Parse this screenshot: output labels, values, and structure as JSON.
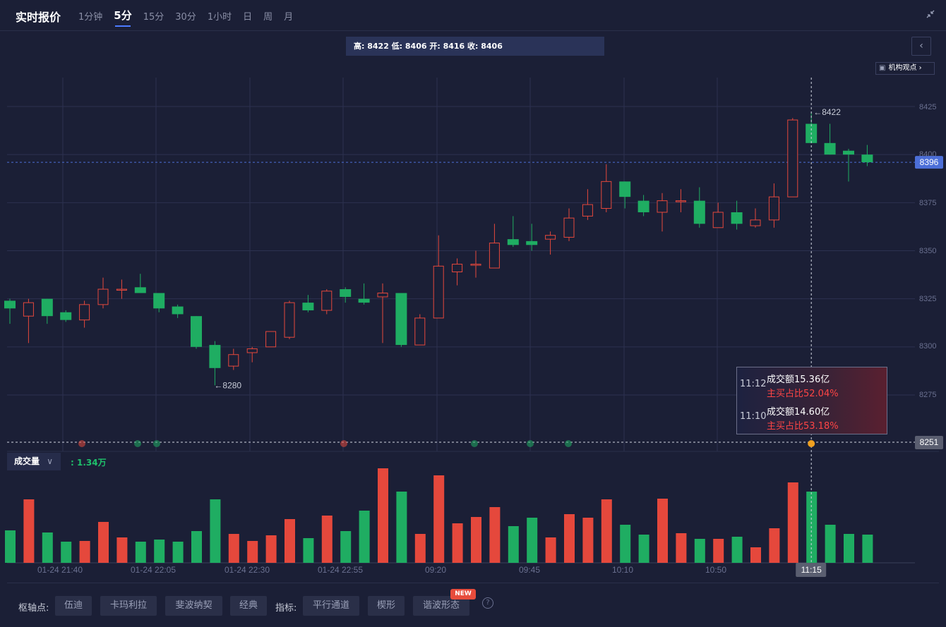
{
  "header": {
    "title": "实时报价",
    "tabs": [
      "1分钟",
      "5分",
      "15分",
      "30分",
      "1小时",
      "日",
      "周",
      "月"
    ],
    "active_tab": "5分"
  },
  "ohlc_label": "高: 8422 低: 8406 开: 8416 收: 8406",
  "institution_button": "机构观点",
  "price_axis": {
    "ticks": [
      "8425",
      "8400",
      "8375",
      "8350",
      "8325",
      "8300",
      "8275"
    ],
    "current_price": "8396",
    "crosshair_price": "8251"
  },
  "annotations": {
    "high_label": "8422",
    "low_label": "8280"
  },
  "volume": {
    "selector_label": "成交量",
    "value": ": 1.34万"
  },
  "time_axis": {
    "labels": [
      "01-24 21:40",
      "01-24 22:05",
      "01-24 22:30",
      "01-24 22:55",
      "09:20",
      "09:45",
      "10:10",
      "10:50"
    ],
    "crosshair_time": "11:15"
  },
  "tooltip": [
    {
      "time": "11:12",
      "amount": "成交额15.36亿",
      "ratio": "主买占比52.04%"
    },
    {
      "time": "11:10",
      "amount": "成交额14.60亿",
      "ratio": "主买占比53.18%"
    }
  ],
  "bottom_bar": {
    "pivot_label": "枢轴点:",
    "pivot_buttons": [
      "伍迪",
      "卡玛利拉",
      "斐波纳契",
      "经典"
    ],
    "indicator_label": "指标:",
    "indicator_buttons": [
      "平行通道",
      "楔形",
      "谐波形态"
    ],
    "new_badge": "NEW"
  },
  "colors": {
    "up": "#e5483c",
    "down": "#1fad62",
    "background": "#1b1f36",
    "accent": "#4c6fd8"
  },
  "chart_data": {
    "type": "candlestick",
    "candles": [
      {
        "o": 8324,
        "h": 8325,
        "l": 8312,
        "c": 8320
      },
      {
        "o": 8316,
        "h": 8325,
        "l": 8302,
        "c": 8323
      },
      {
        "o": 8325,
        "h": 8325,
        "l": 8312,
        "c": 8316
      },
      {
        "o": 8318,
        "h": 8319,
        "l": 8313,
        "c": 8314
      },
      {
        "o": 8314,
        "h": 8324,
        "l": 8310,
        "c": 8322
      },
      {
        "o": 8322,
        "h": 8336,
        "l": 8320,
        "c": 8330
      },
      {
        "o": 8330,
        "h": 8335,
        "l": 8325,
        "c": 8330
      },
      {
        "o": 8331,
        "h": 8338,
        "l": 8328,
        "c": 8328
      },
      {
        "o": 8328,
        "h": 8328,
        "l": 8318,
        "c": 8320
      },
      {
        "o": 8321,
        "h": 8322,
        "l": 8315,
        "c": 8317
      },
      {
        "o": 8316,
        "h": 8316,
        "l": 8299,
        "c": 8300
      },
      {
        "o": 8301,
        "h": 8303,
        "l": 8280,
        "c": 8289
      },
      {
        "o": 8290,
        "h": 8299,
        "l": 8288,
        "c": 8296
      },
      {
        "o": 8297,
        "h": 8300,
        "l": 8292,
        "c": 8299
      },
      {
        "o": 8300,
        "h": 8308,
        "l": 8300,
        "c": 8308
      },
      {
        "o": 8305,
        "h": 8324,
        "l": 8304,
        "c": 8323
      },
      {
        "o": 8323,
        "h": 8327,
        "l": 8318,
        "c": 8319
      },
      {
        "o": 8319,
        "h": 8330,
        "l": 8317,
        "c": 8329
      },
      {
        "o": 8330,
        "h": 8331,
        "l": 8323,
        "c": 8326
      },
      {
        "o": 8325,
        "h": 8333,
        "l": 8322,
        "c": 8323
      },
      {
        "o": 8326,
        "h": 8333,
        "l": 8302,
        "c": 8328
      },
      {
        "o": 8328,
        "h": 8328,
        "l": 8300,
        "c": 8301
      },
      {
        "o": 8301,
        "h": 8317,
        "l": 8301,
        "c": 8315
      },
      {
        "o": 8315,
        "h": 8358,
        "l": 8315,
        "c": 8342
      },
      {
        "o": 8339,
        "h": 8346,
        "l": 8332,
        "c": 8343
      },
      {
        "o": 8343,
        "h": 8350,
        "l": 8336,
        "c": 8343
      },
      {
        "o": 8341,
        "h": 8364,
        "l": 8341,
        "c": 8354
      },
      {
        "o": 8356,
        "h": 8368,
        "l": 8352,
        "c": 8353
      },
      {
        "o": 8355,
        "h": 8364,
        "l": 8350,
        "c": 8353
      },
      {
        "o": 8356,
        "h": 8360,
        "l": 8348,
        "c": 8358
      },
      {
        "o": 8357,
        "h": 8372,
        "l": 8355,
        "c": 8367
      },
      {
        "o": 8368,
        "h": 8382,
        "l": 8366,
        "c": 8374
      },
      {
        "o": 8372,
        "h": 8395,
        "l": 8370,
        "c": 8386
      },
      {
        "o": 8386,
        "h": 8386,
        "l": 8372,
        "c": 8378
      },
      {
        "o": 8376,
        "h": 8379,
        "l": 8368,
        "c": 8370
      },
      {
        "o": 8370,
        "h": 8380,
        "l": 8360,
        "c": 8376
      },
      {
        "o": 8376,
        "h": 8382,
        "l": 8370,
        "c": 8376
      },
      {
        "o": 8376,
        "h": 8383,
        "l": 8362,
        "c": 8364
      },
      {
        "o": 8362,
        "h": 8375,
        "l": 8362,
        "c": 8370
      },
      {
        "o": 8370,
        "h": 8376,
        "l": 8361,
        "c": 8364
      },
      {
        "o": 8363,
        "h": 8372,
        "l": 8362,
        "c": 8366
      },
      {
        "o": 8366,
        "h": 8385,
        "l": 8362,
        "c": 8378
      },
      {
        "o": 8378,
        "h": 8419,
        "l": 8378,
        "c": 8418
      },
      {
        "o": 8416,
        "h": 8422,
        "l": 8406,
        "c": 8406
      },
      {
        "o": 8406,
        "h": 8416,
        "l": 8400,
        "c": 8400
      },
      {
        "o": 8402,
        "h": 8403,
        "l": 8386,
        "c": 8400
      },
      {
        "o": 8400,
        "h": 8405,
        "l": 8394,
        "c": 8396
      }
    ],
    "volume": [
      46,
      90,
      43,
      30,
      31,
      58,
      36,
      30,
      33,
      30,
      45,
      90,
      41,
      31,
      39,
      62,
      35,
      67,
      45,
      74,
      134,
      101,
      41,
      124,
      56,
      65,
      79,
      52,
      64,
      36,
      69,
      64,
      90,
      54,
      40,
      91,
      42,
      34,
      34,
      37,
      22,
      49,
      114,
      101,
      54,
      41,
      40
    ],
    "ylim": [
      8251,
      8430
    ],
    "current_price": 8396
  }
}
